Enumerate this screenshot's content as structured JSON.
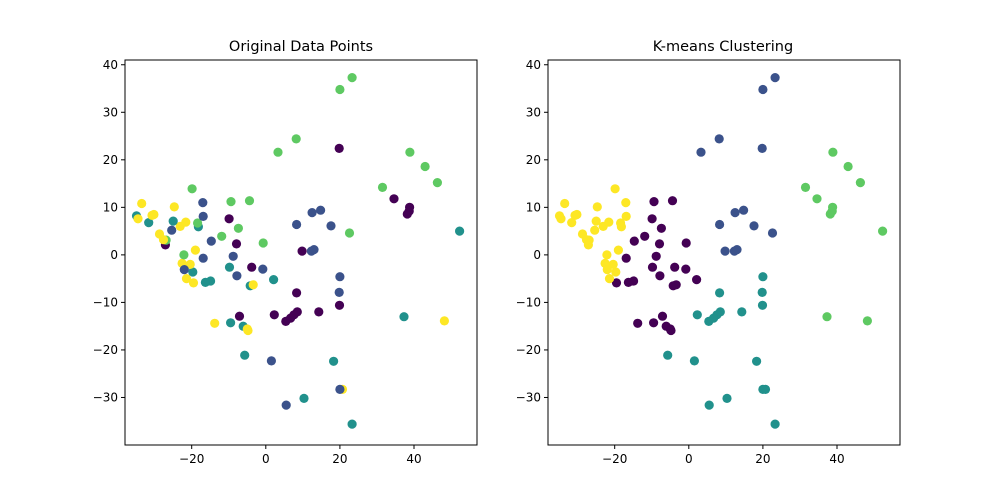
{
  "palette": {
    "c0": "#440154",
    "c1": "#3b528b",
    "c2": "#21918c",
    "c3": "#5ec962",
    "c4": "#fde725"
  },
  "chart_data": [
    {
      "type": "scatter",
      "title": "Original Data Points",
      "xlabel": "",
      "ylabel": "",
      "xlim": [
        -38,
        57
      ],
      "ylim": [
        -40,
        41
      ],
      "xticks": [
        -20,
        0,
        20,
        40
      ],
      "yticks": [
        -30,
        -20,
        -10,
        0,
        10,
        20,
        30,
        40
      ],
      "grid": false,
      "points": [
        {
          "x": 23.3,
          "y": 37.3,
          "c": "c3"
        },
        {
          "x": 20.0,
          "y": 34.8,
          "c": "c3"
        },
        {
          "x": 8.2,
          "y": 24.4,
          "c": "c3"
        },
        {
          "x": 3.3,
          "y": 21.6,
          "c": "c3"
        },
        {
          "x": 19.8,
          "y": 22.4,
          "c": "c0"
        },
        {
          "x": 38.9,
          "y": 21.6,
          "c": "c3"
        },
        {
          "x": 43.0,
          "y": 18.6,
          "c": "c3"
        },
        {
          "x": 46.3,
          "y": 15.2,
          "c": "c3"
        },
        {
          "x": 31.5,
          "y": 14.2,
          "c": "c3"
        },
        {
          "x": 34.6,
          "y": 11.8,
          "c": "c0"
        },
        {
          "x": 38.2,
          "y": 8.6,
          "c": "c0"
        },
        {
          "x": 38.7,
          "y": 9.2,
          "c": "c0"
        },
        {
          "x": 38.8,
          "y": 10.0,
          "c": "c0"
        },
        {
          "x": 52.3,
          "y": 5.0,
          "c": "c2"
        },
        {
          "x": 14.8,
          "y": 9.4,
          "c": "c1"
        },
        {
          "x": 12.5,
          "y": 8.9,
          "c": "c1"
        },
        {
          "x": 17.6,
          "y": 6.1,
          "c": "c1"
        },
        {
          "x": 8.3,
          "y": 6.4,
          "c": "c1"
        },
        {
          "x": 22.6,
          "y": 4.6,
          "c": "c3"
        },
        {
          "x": 12.3,
          "y": 0.8,
          "c": "c1"
        },
        {
          "x": 13.0,
          "y": 1.1,
          "c": "c1"
        },
        {
          "x": 9.8,
          "y": 0.8,
          "c": "c0"
        },
        {
          "x": 20.0,
          "y": -4.6,
          "c": "c1"
        },
        {
          "x": 19.8,
          "y": -7.9,
          "c": "c1"
        },
        {
          "x": 8.3,
          "y": -8.0,
          "c": "c0"
        },
        {
          "x": 19.9,
          "y": -10.6,
          "c": "c0"
        },
        {
          "x": 8.5,
          "y": -12.0,
          "c": "c0"
        },
        {
          "x": 7.6,
          "y": -12.6,
          "c": "c0"
        },
        {
          "x": 14.3,
          "y": -12.0,
          "c": "c0"
        },
        {
          "x": 2.3,
          "y": -12.6,
          "c": "c0"
        },
        {
          "x": 6.7,
          "y": -13.3,
          "c": "c0"
        },
        {
          "x": 5.4,
          "y": -14.0,
          "c": "c0"
        },
        {
          "x": 37.3,
          "y": -13.0,
          "c": "c2"
        },
        {
          "x": 48.2,
          "y": -13.9,
          "c": "c4"
        },
        {
          "x": 18.3,
          "y": -22.4,
          "c": "c2"
        },
        {
          "x": 20.7,
          "y": -28.3,
          "c": "c4"
        },
        {
          "x": 20.0,
          "y": -28.3,
          "c": "c1"
        },
        {
          "x": 10.3,
          "y": -30.2,
          "c": "c2"
        },
        {
          "x": 23.3,
          "y": -35.6,
          "c": "c2"
        },
        {
          "x": 5.5,
          "y": -31.6,
          "c": "c1"
        },
        {
          "x": 1.5,
          "y": -22.3,
          "c": "c1"
        },
        {
          "x": -5.7,
          "y": -21.1,
          "c": "c2"
        },
        {
          "x": -6.1,
          "y": -15.0,
          "c": "c2"
        },
        {
          "x": -5.0,
          "y": -15.6,
          "c": "c4"
        },
        {
          "x": -4.8,
          "y": -15.9,
          "c": "c4"
        },
        {
          "x": -9.5,
          "y": -14.3,
          "c": "c2"
        },
        {
          "x": -13.8,
          "y": -14.4,
          "c": "c4"
        },
        {
          "x": -7.1,
          "y": -12.9,
          "c": "c0"
        },
        {
          "x": -4.2,
          "y": -6.5,
          "c": "c2"
        },
        {
          "x": -3.4,
          "y": -6.3,
          "c": "c4"
        },
        {
          "x": -3.8,
          "y": -2.6,
          "c": "c0"
        },
        {
          "x": -0.8,
          "y": -3.0,
          "c": "c1"
        },
        {
          "x": 2.1,
          "y": -5.2,
          "c": "c2"
        },
        {
          "x": -9.8,
          "y": -2.6,
          "c": "c2"
        },
        {
          "x": -7.8,
          "y": -4.4,
          "c": "c1"
        },
        {
          "x": -8.8,
          "y": -0.3,
          "c": "c1"
        },
        {
          "x": -7.9,
          "y": 2.3,
          "c": "c0"
        },
        {
          "x": -14.9,
          "y": -5.5,
          "c": "c2"
        },
        {
          "x": -16.3,
          "y": -5.8,
          "c": "c2"
        },
        {
          "x": -19.5,
          "y": -5.9,
          "c": "c4"
        },
        {
          "x": -21.4,
          "y": -5.0,
          "c": "c4"
        },
        {
          "x": -19.7,
          "y": -3.6,
          "c": "c2"
        },
        {
          "x": -20.4,
          "y": -2.0,
          "c": "c4"
        },
        {
          "x": -22.6,
          "y": -1.8,
          "c": "c4"
        },
        {
          "x": -22.0,
          "y": -3.1,
          "c": "c1"
        },
        {
          "x": -16.9,
          "y": -0.7,
          "c": "c1"
        },
        {
          "x": -19.0,
          "y": 1.0,
          "c": "c4"
        },
        {
          "x": -22.1,
          "y": 0.0,
          "c": "c3"
        },
        {
          "x": -0.7,
          "y": 2.5,
          "c": "c3"
        },
        {
          "x": -14.7,
          "y": 2.9,
          "c": "c1"
        },
        {
          "x": -11.9,
          "y": 3.9,
          "c": "c3"
        },
        {
          "x": -27.1,
          "y": 2.1,
          "c": "c0"
        },
        {
          "x": -26.9,
          "y": 3.1,
          "c": "c3"
        },
        {
          "x": -28.7,
          "y": 4.4,
          "c": "c4"
        },
        {
          "x": -27.6,
          "y": 3.2,
          "c": "c4"
        },
        {
          "x": -25.4,
          "y": 5.2,
          "c": "c1"
        },
        {
          "x": -23.1,
          "y": 6.0,
          "c": "c4"
        },
        {
          "x": -21.6,
          "y": 6.9,
          "c": "c4"
        },
        {
          "x": -18.2,
          "y": 5.9,
          "c": "c2"
        },
        {
          "x": -18.4,
          "y": 6.7,
          "c": "c3"
        },
        {
          "x": -16.9,
          "y": 8.1,
          "c": "c1"
        },
        {
          "x": -25.0,
          "y": 7.1,
          "c": "c2"
        },
        {
          "x": -31.6,
          "y": 6.8,
          "c": "c2"
        },
        {
          "x": -34.9,
          "y": 8.2,
          "c": "c2"
        },
        {
          "x": -34.5,
          "y": 7.6,
          "c": "c4"
        },
        {
          "x": -30.7,
          "y": 8.3,
          "c": "c4"
        },
        {
          "x": -30.2,
          "y": 8.5,
          "c": "c4"
        },
        {
          "x": -33.5,
          "y": 10.8,
          "c": "c4"
        },
        {
          "x": -24.7,
          "y": 10.1,
          "c": "c4"
        },
        {
          "x": -17.0,
          "y": 11.0,
          "c": "c1"
        },
        {
          "x": -9.4,
          "y": 11.2,
          "c": "c3"
        },
        {
          "x": -4.4,
          "y": 11.4,
          "c": "c3"
        },
        {
          "x": -9.9,
          "y": 7.6,
          "c": "c0"
        },
        {
          "x": -7.4,
          "y": 5.6,
          "c": "c3"
        },
        {
          "x": -19.9,
          "y": 13.9,
          "c": "c3"
        }
      ]
    },
    {
      "type": "scatter",
      "title": "K-means Clustering",
      "xlabel": "",
      "ylabel": "",
      "xlim": [
        -38,
        57
      ],
      "ylim": [
        -40,
        41
      ],
      "xticks": [
        -20,
        0,
        20,
        40
      ],
      "yticks": [
        -30,
        -20,
        -10,
        0,
        10,
        20,
        30,
        40
      ],
      "grid": false,
      "points": [
        {
          "x": 23.3,
          "y": 37.3,
          "c": "c1"
        },
        {
          "x": 20.0,
          "y": 34.8,
          "c": "c1"
        },
        {
          "x": 8.2,
          "y": 24.4,
          "c": "c1"
        },
        {
          "x": 3.3,
          "y": 21.6,
          "c": "c1"
        },
        {
          "x": 19.8,
          "y": 22.4,
          "c": "c1"
        },
        {
          "x": 38.9,
          "y": 21.6,
          "c": "c3"
        },
        {
          "x": 43.0,
          "y": 18.6,
          "c": "c3"
        },
        {
          "x": 46.3,
          "y": 15.2,
          "c": "c3"
        },
        {
          "x": 31.5,
          "y": 14.2,
          "c": "c3"
        },
        {
          "x": 34.6,
          "y": 11.8,
          "c": "c3"
        },
        {
          "x": 38.2,
          "y": 8.6,
          "c": "c3"
        },
        {
          "x": 38.7,
          "y": 9.2,
          "c": "c3"
        },
        {
          "x": 38.8,
          "y": 10.0,
          "c": "c3"
        },
        {
          "x": 52.3,
          "y": 5.0,
          "c": "c3"
        },
        {
          "x": 14.8,
          "y": 9.4,
          "c": "c1"
        },
        {
          "x": 12.5,
          "y": 8.9,
          "c": "c1"
        },
        {
          "x": 17.6,
          "y": 6.1,
          "c": "c1"
        },
        {
          "x": 8.3,
          "y": 6.4,
          "c": "c1"
        },
        {
          "x": 22.6,
          "y": 4.6,
          "c": "c1"
        },
        {
          "x": 12.3,
          "y": 0.8,
          "c": "c1"
        },
        {
          "x": 13.0,
          "y": 1.1,
          "c": "c1"
        },
        {
          "x": 9.8,
          "y": 0.8,
          "c": "c1"
        },
        {
          "x": 20.0,
          "y": -4.6,
          "c": "c2"
        },
        {
          "x": 19.8,
          "y": -7.9,
          "c": "c2"
        },
        {
          "x": 8.3,
          "y": -8.0,
          "c": "c2"
        },
        {
          "x": 19.9,
          "y": -10.6,
          "c": "c2"
        },
        {
          "x": 8.5,
          "y": -12.0,
          "c": "c2"
        },
        {
          "x": 7.6,
          "y": -12.6,
          "c": "c2"
        },
        {
          "x": 14.3,
          "y": -12.0,
          "c": "c2"
        },
        {
          "x": 2.3,
          "y": -12.6,
          "c": "c2"
        },
        {
          "x": 6.7,
          "y": -13.3,
          "c": "c2"
        },
        {
          "x": 5.4,
          "y": -14.0,
          "c": "c2"
        },
        {
          "x": 37.3,
          "y": -13.0,
          "c": "c3"
        },
        {
          "x": 48.2,
          "y": -13.9,
          "c": "c3"
        },
        {
          "x": 18.3,
          "y": -22.4,
          "c": "c2"
        },
        {
          "x": 20.7,
          "y": -28.3,
          "c": "c2"
        },
        {
          "x": 20.0,
          "y": -28.3,
          "c": "c2"
        },
        {
          "x": 10.3,
          "y": -30.2,
          "c": "c2"
        },
        {
          "x": 23.3,
          "y": -35.6,
          "c": "c2"
        },
        {
          "x": 5.5,
          "y": -31.6,
          "c": "c2"
        },
        {
          "x": 1.5,
          "y": -22.3,
          "c": "c2"
        },
        {
          "x": -5.7,
          "y": -21.1,
          "c": "c2"
        },
        {
          "x": -6.1,
          "y": -15.0,
          "c": "c0"
        },
        {
          "x": -5.0,
          "y": -15.6,
          "c": "c0"
        },
        {
          "x": -4.8,
          "y": -15.9,
          "c": "c0"
        },
        {
          "x": -9.5,
          "y": -14.3,
          "c": "c0"
        },
        {
          "x": -13.8,
          "y": -14.4,
          "c": "c0"
        },
        {
          "x": -7.1,
          "y": -12.9,
          "c": "c0"
        },
        {
          "x": -4.2,
          "y": -6.5,
          "c": "c0"
        },
        {
          "x": -3.4,
          "y": -6.3,
          "c": "c0"
        },
        {
          "x": -3.8,
          "y": -2.6,
          "c": "c0"
        },
        {
          "x": -0.8,
          "y": -3.0,
          "c": "c0"
        },
        {
          "x": 2.1,
          "y": -5.2,
          "c": "c0"
        },
        {
          "x": -9.8,
          "y": -2.6,
          "c": "c0"
        },
        {
          "x": -7.8,
          "y": -4.4,
          "c": "c0"
        },
        {
          "x": -8.8,
          "y": -0.3,
          "c": "c0"
        },
        {
          "x": -7.9,
          "y": 2.3,
          "c": "c0"
        },
        {
          "x": -14.9,
          "y": -5.5,
          "c": "c0"
        },
        {
          "x": -16.3,
          "y": -5.8,
          "c": "c0"
        },
        {
          "x": -19.5,
          "y": -5.9,
          "c": "c0"
        },
        {
          "x": -21.4,
          "y": -5.0,
          "c": "c4"
        },
        {
          "x": -19.7,
          "y": -3.6,
          "c": "c4"
        },
        {
          "x": -20.4,
          "y": -2.0,
          "c": "c4"
        },
        {
          "x": -22.6,
          "y": -1.8,
          "c": "c4"
        },
        {
          "x": -22.0,
          "y": -3.1,
          "c": "c4"
        },
        {
          "x": -16.9,
          "y": -0.7,
          "c": "c0"
        },
        {
          "x": -19.0,
          "y": 1.0,
          "c": "c4"
        },
        {
          "x": -22.1,
          "y": 0.0,
          "c": "c4"
        },
        {
          "x": -0.7,
          "y": 2.5,
          "c": "c0"
        },
        {
          "x": -14.7,
          "y": 2.9,
          "c": "c0"
        },
        {
          "x": -11.9,
          "y": 3.9,
          "c": "c0"
        },
        {
          "x": -27.1,
          "y": 2.1,
          "c": "c4"
        },
        {
          "x": -26.9,
          "y": 3.1,
          "c": "c4"
        },
        {
          "x": -28.7,
          "y": 4.4,
          "c": "c4"
        },
        {
          "x": -27.6,
          "y": 3.2,
          "c": "c4"
        },
        {
          "x": -25.4,
          "y": 5.2,
          "c": "c4"
        },
        {
          "x": -23.1,
          "y": 6.0,
          "c": "c4"
        },
        {
          "x": -21.6,
          "y": 6.9,
          "c": "c4"
        },
        {
          "x": -18.2,
          "y": 5.9,
          "c": "c4"
        },
        {
          "x": -18.4,
          "y": 6.7,
          "c": "c4"
        },
        {
          "x": -16.9,
          "y": 8.1,
          "c": "c4"
        },
        {
          "x": -25.0,
          "y": 7.1,
          "c": "c4"
        },
        {
          "x": -31.6,
          "y": 6.8,
          "c": "c4"
        },
        {
          "x": -34.9,
          "y": 8.2,
          "c": "c4"
        },
        {
          "x": -34.5,
          "y": 7.6,
          "c": "c4"
        },
        {
          "x": -30.7,
          "y": 8.3,
          "c": "c4"
        },
        {
          "x": -30.2,
          "y": 8.5,
          "c": "c4"
        },
        {
          "x": -33.5,
          "y": 10.8,
          "c": "c4"
        },
        {
          "x": -24.7,
          "y": 10.1,
          "c": "c4"
        },
        {
          "x": -17.0,
          "y": 11.0,
          "c": "c4"
        },
        {
          "x": -9.4,
          "y": 11.2,
          "c": "c0"
        },
        {
          "x": -4.4,
          "y": 11.4,
          "c": "c0"
        },
        {
          "x": -9.9,
          "y": 7.6,
          "c": "c0"
        },
        {
          "x": -7.4,
          "y": 5.6,
          "c": "c0"
        },
        {
          "x": -19.9,
          "y": 13.9,
          "c": "c4"
        }
      ]
    }
  ]
}
